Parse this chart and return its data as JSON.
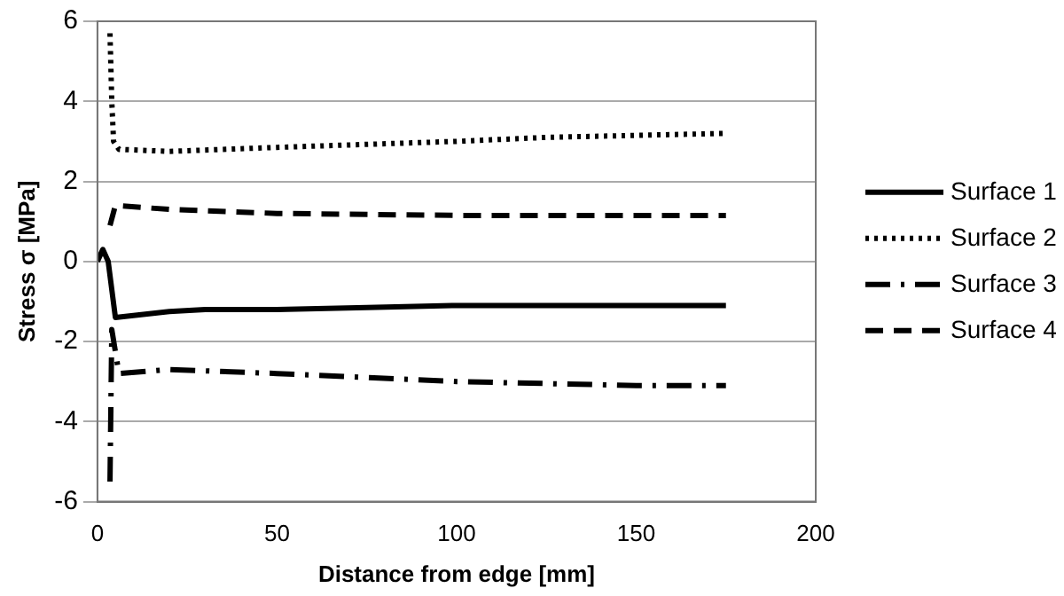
{
  "chart_data": {
    "type": "line",
    "xlabel": "Distance from edge [mm]",
    "ylabel": "Stress σ [MPa]",
    "xlim": [
      0,
      200
    ],
    "xticks": [
      0,
      50,
      100,
      150,
      200
    ],
    "ylim": [
      -6,
      6
    ],
    "yticks": [
      -6,
      -4,
      -2,
      0,
      2,
      4,
      6
    ],
    "grid": "y",
    "legend": "right",
    "marker": "none",
    "series": [
      {
        "name": "Surface 1",
        "color": "#000000",
        "line_style": "solid",
        "x": [
          0,
          1.5,
          3,
          5,
          10,
          20,
          30,
          50,
          75,
          100,
          125,
          150,
          175
        ],
        "values": [
          0,
          0.3,
          0,
          -1.4,
          -1.35,
          -1.25,
          -1.2,
          -1.2,
          -1.15,
          -1.1,
          -1.1,
          -1.1,
          -1.1
        ]
      },
      {
        "name": "Surface 2",
        "color": "#000000",
        "line_style": "dotted",
        "x": [
          3.5,
          4,
          4.5,
          6,
          20,
          50,
          100,
          125,
          150,
          175
        ],
        "values": [
          5.7,
          4,
          3,
          2.8,
          2.75,
          2.85,
          3,
          3.1,
          3.15,
          3.2
        ]
      },
      {
        "name": "Surface 3",
        "color": "#000000",
        "line_style": "dashdot",
        "x": [
          3.5,
          4,
          6,
          20,
          50,
          75,
          100,
          125,
          150,
          175
        ],
        "values": [
          -5.5,
          -1.7,
          -2.8,
          -2.7,
          -2.8,
          -2.9,
          -3,
          -3.05,
          -3.1,
          -3.1
        ]
      },
      {
        "name": "Surface 4",
        "color": "#000000",
        "line_style": "dashed",
        "x": [
          3.5,
          5,
          20,
          50,
          100,
          175
        ],
        "values": [
          0.9,
          1.4,
          1.3,
          1.2,
          1.15,
          1.15
        ]
      }
    ]
  }
}
